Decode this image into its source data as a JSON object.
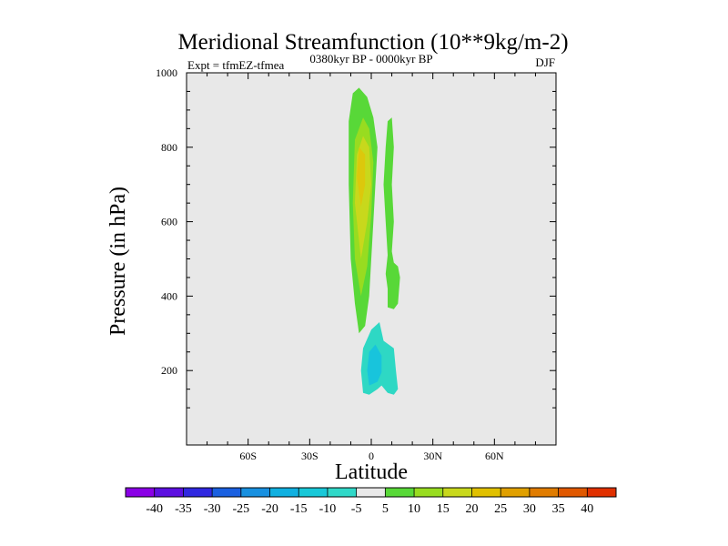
{
  "chart_data": {
    "type": "contour",
    "title": "Meridional Streamfunction (10**9kg/m-2)",
    "left_label": "Expt = tfmEZ-tfmea",
    "center_label": "0380kyr BP - 0000kyr BP",
    "right_label": "DJF",
    "xlabel": "Latitude",
    "ylabel": "Pressure (in hPa)",
    "xlim": [
      -90,
      90
    ],
    "ylim": [
      1000,
      0
    ],
    "x_ticks": [
      {
        "value": -60,
        "label": "60S"
      },
      {
        "value": -30,
        "label": "30S"
      },
      {
        "value": 0,
        "label": "0"
      },
      {
        "value": 30,
        "label": "30N"
      },
      {
        "value": 60,
        "label": "60N"
      }
    ],
    "y_ticks": [
      {
        "value": 200,
        "label": "200"
      },
      {
        "value": 400,
        "label": "400"
      },
      {
        "value": 600,
        "label": "600"
      },
      {
        "value": 800,
        "label": "800"
      },
      {
        "value": 1000,
        "label": "1000"
      }
    ],
    "background_color": "#e8e8e8",
    "colorbar": {
      "colors": [
        "#8a00e6",
        "#5c10e0",
        "#3028e0",
        "#1a60e0",
        "#1890e0",
        "#10b0e0",
        "#18c8d8",
        "#30d8c8",
        "#e8e8e8",
        "#58d838",
        "#98dc20",
        "#c8d81c",
        "#e0c000",
        "#e0a000",
        "#e07c00",
        "#e05800",
        "#e03000"
      ],
      "labels": [
        "-40",
        "-35",
        "-30",
        "-25",
        "-20",
        "-15",
        "-10",
        "-5",
        "5",
        "10",
        "15",
        "20",
        "25",
        "30",
        "35",
        "40"
      ]
    },
    "regions": [
      {
        "name": "upper-negative-cell",
        "level": -10,
        "color": "#2ed8c4",
        "points": [
          [
            -4,
            140
          ],
          [
            -1,
            135
          ],
          [
            3,
            150
          ],
          [
            5,
            160
          ],
          [
            8,
            140
          ],
          [
            11,
            135
          ],
          [
            13,
            150
          ],
          [
            12,
            200
          ],
          [
            11,
            260
          ],
          [
            6,
            280
          ],
          [
            4,
            330
          ],
          [
            0,
            310
          ],
          [
            -4,
            260
          ],
          [
            -5,
            200
          ]
        ]
      },
      {
        "name": "upper-negative-core",
        "level": -15,
        "color": "#18c4dc",
        "points": [
          [
            -1,
            160
          ],
          [
            3,
            170
          ],
          [
            5,
            195
          ],
          [
            5,
            240
          ],
          [
            2,
            270
          ],
          [
            -1,
            250
          ],
          [
            -2,
            200
          ]
        ]
      },
      {
        "name": "main-positive-cell",
        "level": 5,
        "color": "#58d838",
        "points": [
          [
            -6,
            300
          ],
          [
            -3,
            320
          ],
          [
            -1,
            400
          ],
          [
            0,
            500
          ],
          [
            1,
            600
          ],
          [
            2,
            700
          ],
          [
            3,
            800
          ],
          [
            1,
            880
          ],
          [
            -2,
            935
          ],
          [
            -6,
            960
          ],
          [
            -9,
            945
          ],
          [
            -11,
            870
          ],
          [
            -11,
            700
          ],
          [
            -10,
            500
          ],
          [
            -8,
            380
          ]
        ]
      },
      {
        "name": "main-positive-inner",
        "level": 10,
        "color": "#98dc20",
        "points": [
          [
            -5,
            400
          ],
          [
            -2,
            480
          ],
          [
            0,
            620
          ],
          [
            1,
            760
          ],
          [
            -1,
            850
          ],
          [
            -4,
            880
          ],
          [
            -8,
            820
          ],
          [
            -9,
            650
          ],
          [
            -8,
            500
          ]
        ]
      },
      {
        "name": "main-positive-mid",
        "level": 15,
        "color": "#c8d81c",
        "points": [
          [
            -5,
            500
          ],
          [
            -2,
            600
          ],
          [
            0,
            700
          ],
          [
            -1,
            800
          ],
          [
            -4,
            830
          ],
          [
            -7,
            780
          ],
          [
            -8,
            650
          ]
        ]
      },
      {
        "name": "main-positive-core",
        "level": 20,
        "color": "#dcc80c",
        "points": [
          [
            -5,
            640
          ],
          [
            -3,
            700
          ],
          [
            -3,
            780
          ],
          [
            -6,
            800
          ],
          [
            -7,
            720
          ]
        ]
      },
      {
        "name": "secondary-positive-cell",
        "level": 5,
        "color": "#58d838",
        "points": [
          [
            8,
            370
          ],
          [
            11,
            365
          ],
          [
            13,
            380
          ],
          [
            14,
            450
          ],
          [
            13,
            480
          ],
          [
            11,
            490
          ],
          [
            10,
            520
          ],
          [
            11,
            600
          ],
          [
            10,
            700
          ],
          [
            11,
            800
          ],
          [
            10,
            880
          ],
          [
            8,
            870
          ],
          [
            7,
            800
          ],
          [
            6,
            700
          ],
          [
            7,
            600
          ],
          [
            8,
            510
          ],
          [
            7,
            460
          ],
          [
            8,
            420
          ]
        ]
      }
    ]
  }
}
